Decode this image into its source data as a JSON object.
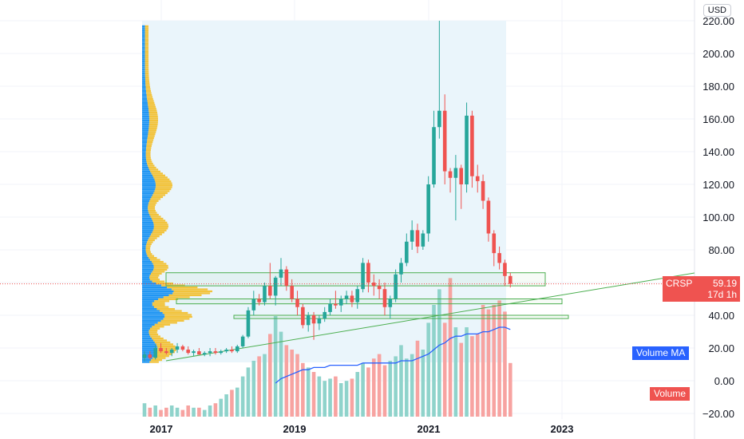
{
  "currency": "USD",
  "symbol": "CRSP",
  "last_price": "59.19",
  "countdown": "17d 1h",
  "labels": {
    "volume_ma": "Volume MA",
    "volume": "Volume"
  },
  "colors": {
    "up": "#26a69a",
    "down": "#ef5350",
    "vol_up": "#8fd3cb",
    "vol_down": "#f7a3a1",
    "vma": "#2962ff",
    "vp_blue": "#2196f3",
    "vp_yellow": "#f2c33c",
    "zone": "#4caf50",
    "range_bg": "#eaf5fb"
  },
  "chart_data": {
    "type": "candlestick",
    "interval": "monthly",
    "y_ticks": [
      "220.00",
      "200.00",
      "180.00",
      "160.00",
      "140.00",
      "120.00",
      "100.00",
      "80.00",
      "60.00",
      "40.00",
      "20.00",
      "0.00",
      "−20.00"
    ],
    "x_ticks": [
      "2017",
      "2019",
      "2021",
      "2023"
    ],
    "ylim": [
      -20,
      220
    ],
    "candles": [
      {
        "o": 14,
        "h": 18,
        "l": 12,
        "c": 16
      },
      {
        "o": 16,
        "h": 18,
        "l": 13,
        "c": 14
      },
      {
        "o": 14,
        "h": 22,
        "l": 13,
        "c": 20
      },
      {
        "o": 20,
        "h": 23,
        "l": 17,
        "c": 18
      },
      {
        "o": 18,
        "h": 20,
        "l": 16,
        "c": 17
      },
      {
        "o": 17,
        "h": 20,
        "l": 15,
        "c": 19
      },
      {
        "o": 19,
        "h": 23,
        "l": 17,
        "c": 21
      },
      {
        "o": 21,
        "h": 22,
        "l": 18,
        "c": 19
      },
      {
        "o": 19,
        "h": 21,
        "l": 16,
        "c": 17
      },
      {
        "o": 17,
        "h": 19,
        "l": 15,
        "c": 18
      },
      {
        "o": 18,
        "h": 20,
        "l": 16,
        "c": 16
      },
      {
        "o": 16,
        "h": 18,
        "l": 15,
        "c": 17
      },
      {
        "o": 17,
        "h": 20,
        "l": 15,
        "c": 18
      },
      {
        "o": 18,
        "h": 20,
        "l": 16,
        "c": 17
      },
      {
        "o": 17,
        "h": 19,
        "l": 16,
        "c": 18
      },
      {
        "o": 18,
        "h": 20,
        "l": 17,
        "c": 19
      },
      {
        "o": 19,
        "h": 21,
        "l": 17,
        "c": 18
      },
      {
        "o": 18,
        "h": 22,
        "l": 17,
        "c": 21
      },
      {
        "o": 21,
        "h": 28,
        "l": 20,
        "c": 27
      },
      {
        "o": 27,
        "h": 45,
        "l": 26,
        "c": 43
      },
      {
        "o": 43,
        "h": 55,
        "l": 40,
        "c": 50
      },
      {
        "o": 50,
        "h": 53,
        "l": 46,
        "c": 48
      },
      {
        "o": 48,
        "h": 60,
        "l": 46,
        "c": 58
      },
      {
        "o": 58,
        "h": 72,
        "l": 50,
        "c": 52
      },
      {
        "o": 52,
        "h": 64,
        "l": 46,
        "c": 63
      },
      {
        "o": 63,
        "h": 75,
        "l": 58,
        "c": 68
      },
      {
        "o": 68,
        "h": 70,
        "l": 55,
        "c": 58
      },
      {
        "o": 58,
        "h": 62,
        "l": 48,
        "c": 50
      },
      {
        "o": 50,
        "h": 55,
        "l": 40,
        "c": 45
      },
      {
        "o": 45,
        "h": 47,
        "l": 32,
        "c": 34
      },
      {
        "o": 34,
        "h": 42,
        "l": 30,
        "c": 40
      },
      {
        "o": 40,
        "h": 42,
        "l": 25,
        "c": 35
      },
      {
        "o": 35,
        "h": 40,
        "l": 31,
        "c": 38
      },
      {
        "o": 38,
        "h": 45,
        "l": 36,
        "c": 42
      },
      {
        "o": 42,
        "h": 50,
        "l": 40,
        "c": 47
      },
      {
        "o": 47,
        "h": 55,
        "l": 44,
        "c": 46
      },
      {
        "o": 46,
        "h": 52,
        "l": 42,
        "c": 50
      },
      {
        "o": 50,
        "h": 55,
        "l": 47,
        "c": 52
      },
      {
        "o": 52,
        "h": 55,
        "l": 45,
        "c": 48
      },
      {
        "o": 48,
        "h": 58,
        "l": 44,
        "c": 56
      },
      {
        "o": 56,
        "h": 75,
        "l": 54,
        "c": 72
      },
      {
        "o": 72,
        "h": 74,
        "l": 54,
        "c": 60
      },
      {
        "o": 60,
        "h": 65,
        "l": 52,
        "c": 58
      },
      {
        "o": 58,
        "h": 62,
        "l": 50,
        "c": 56
      },
      {
        "o": 56,
        "h": 60,
        "l": 40,
        "c": 45
      },
      {
        "o": 45,
        "h": 52,
        "l": 38,
        "c": 50
      },
      {
        "o": 50,
        "h": 68,
        "l": 48,
        "c": 65
      },
      {
        "o": 65,
        "h": 75,
        "l": 60,
        "c": 72
      },
      {
        "o": 72,
        "h": 90,
        "l": 70,
        "c": 85
      },
      {
        "o": 85,
        "h": 98,
        "l": 80,
        "c": 92
      },
      {
        "o": 92,
        "h": 96,
        "l": 78,
        "c": 82
      },
      {
        "o": 82,
        "h": 92,
        "l": 80,
        "c": 90
      },
      {
        "o": 90,
        "h": 125,
        "l": 85,
        "c": 120
      },
      {
        "o": 120,
        "h": 165,
        "l": 118,
        "c": 155
      },
      {
        "o": 155,
        "h": 220,
        "l": 148,
        "c": 165
      },
      {
        "o": 165,
        "h": 175,
        "l": 120,
        "c": 128
      },
      {
        "o": 128,
        "h": 130,
        "l": 115,
        "c": 124
      },
      {
        "o": 124,
        "h": 138,
        "l": 98,
        "c": 130
      },
      {
        "o": 130,
        "h": 132,
        "l": 105,
        "c": 120
      },
      {
        "o": 120,
        "h": 170,
        "l": 115,
        "c": 162
      },
      {
        "o": 162,
        "h": 165,
        "l": 118,
        "c": 125
      },
      {
        "o": 125,
        "h": 132,
        "l": 115,
        "c": 122
      },
      {
        "o": 122,
        "h": 126,
        "l": 105,
        "c": 110
      },
      {
        "o": 110,
        "h": 112,
        "l": 85,
        "c": 90
      },
      {
        "o": 90,
        "h": 92,
        "l": 70,
        "c": 78
      },
      {
        "o": 78,
        "h": 82,
        "l": 68,
        "c": 72
      },
      {
        "o": 72,
        "h": 74,
        "l": 58,
        "c": 64
      },
      {
        "o": 64,
        "h": 66,
        "l": 57,
        "c": 59.19
      }
    ],
    "volume": [
      6,
      4,
      5,
      3,
      4,
      5,
      4,
      3,
      5,
      4,
      4,
      3,
      5,
      6,
      8,
      10,
      12,
      13,
      18,
      22,
      25,
      27,
      28,
      37,
      45,
      38,
      32,
      30,
      28,
      24,
      22,
      20,
      18,
      16,
      17,
      18,
      15,
      16,
      17,
      20,
      24,
      22,
      26,
      28,
      23,
      25,
      27,
      32,
      26,
      28,
      34,
      30,
      42,
      50,
      57,
      42,
      62,
      40,
      33,
      40,
      36,
      37,
      50,
      48,
      50,
      52,
      47,
      24
    ],
    "volume_ma": [
      null,
      null,
      null,
      null,
      null,
      null,
      null,
      null,
      null,
      null,
      null,
      null,
      null,
      null,
      null,
      null,
      null,
      null,
      null,
      null,
      null,
      null,
      null,
      null,
      15,
      17,
      18,
      19,
      20,
      21,
      21,
      22,
      22,
      22,
      23,
      23,
      23,
      23,
      23,
      23,
      24,
      24,
      24,
      24,
      24,
      24,
      24,
      25,
      25,
      25,
      26,
      27,
      28,
      30,
      32,
      33,
      35,
      36,
      36,
      37,
      37,
      37,
      38,
      38,
      39,
      40,
      40,
      39
    ]
  }
}
